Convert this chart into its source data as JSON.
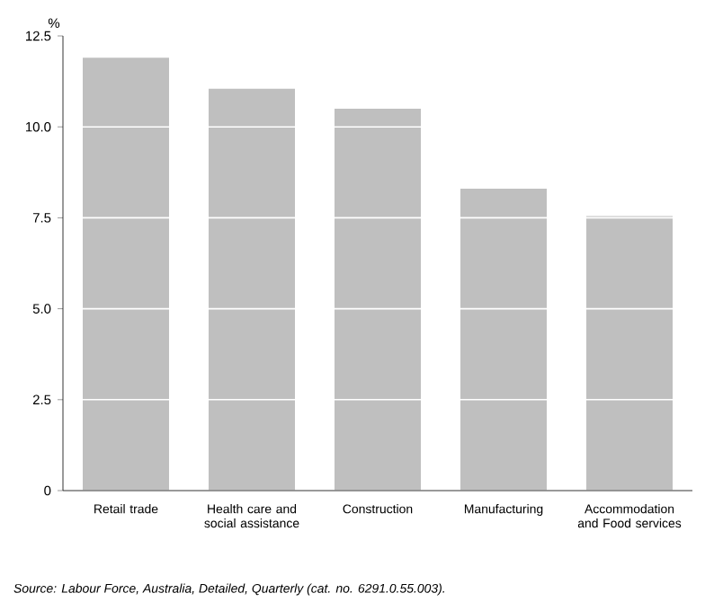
{
  "chart_data": {
    "type": "bar",
    "ylabel": "%",
    "categories": [
      "Retail trade",
      "Health care and social assistance",
      "Construction",
      "Manufacturing",
      "Accommodation and Food services"
    ],
    "values": [
      11.9,
      11.05,
      10.5,
      8.3,
      7.55
    ],
    "color": "#bfbfbf",
    "ylim": [
      0,
      12.5
    ],
    "yticks": [
      0,
      2.5,
      {
        "value": 5,
        "label": "5.0"
      },
      7.5,
      {
        "value": 10,
        "label": "10.0"
      },
      12.5
    ],
    "grid": "y",
    "annotations": [
      "Source: Labour Force, Australia, Detailed, Quarterly (cat. no. 6291.0.55.003)."
    ]
  }
}
